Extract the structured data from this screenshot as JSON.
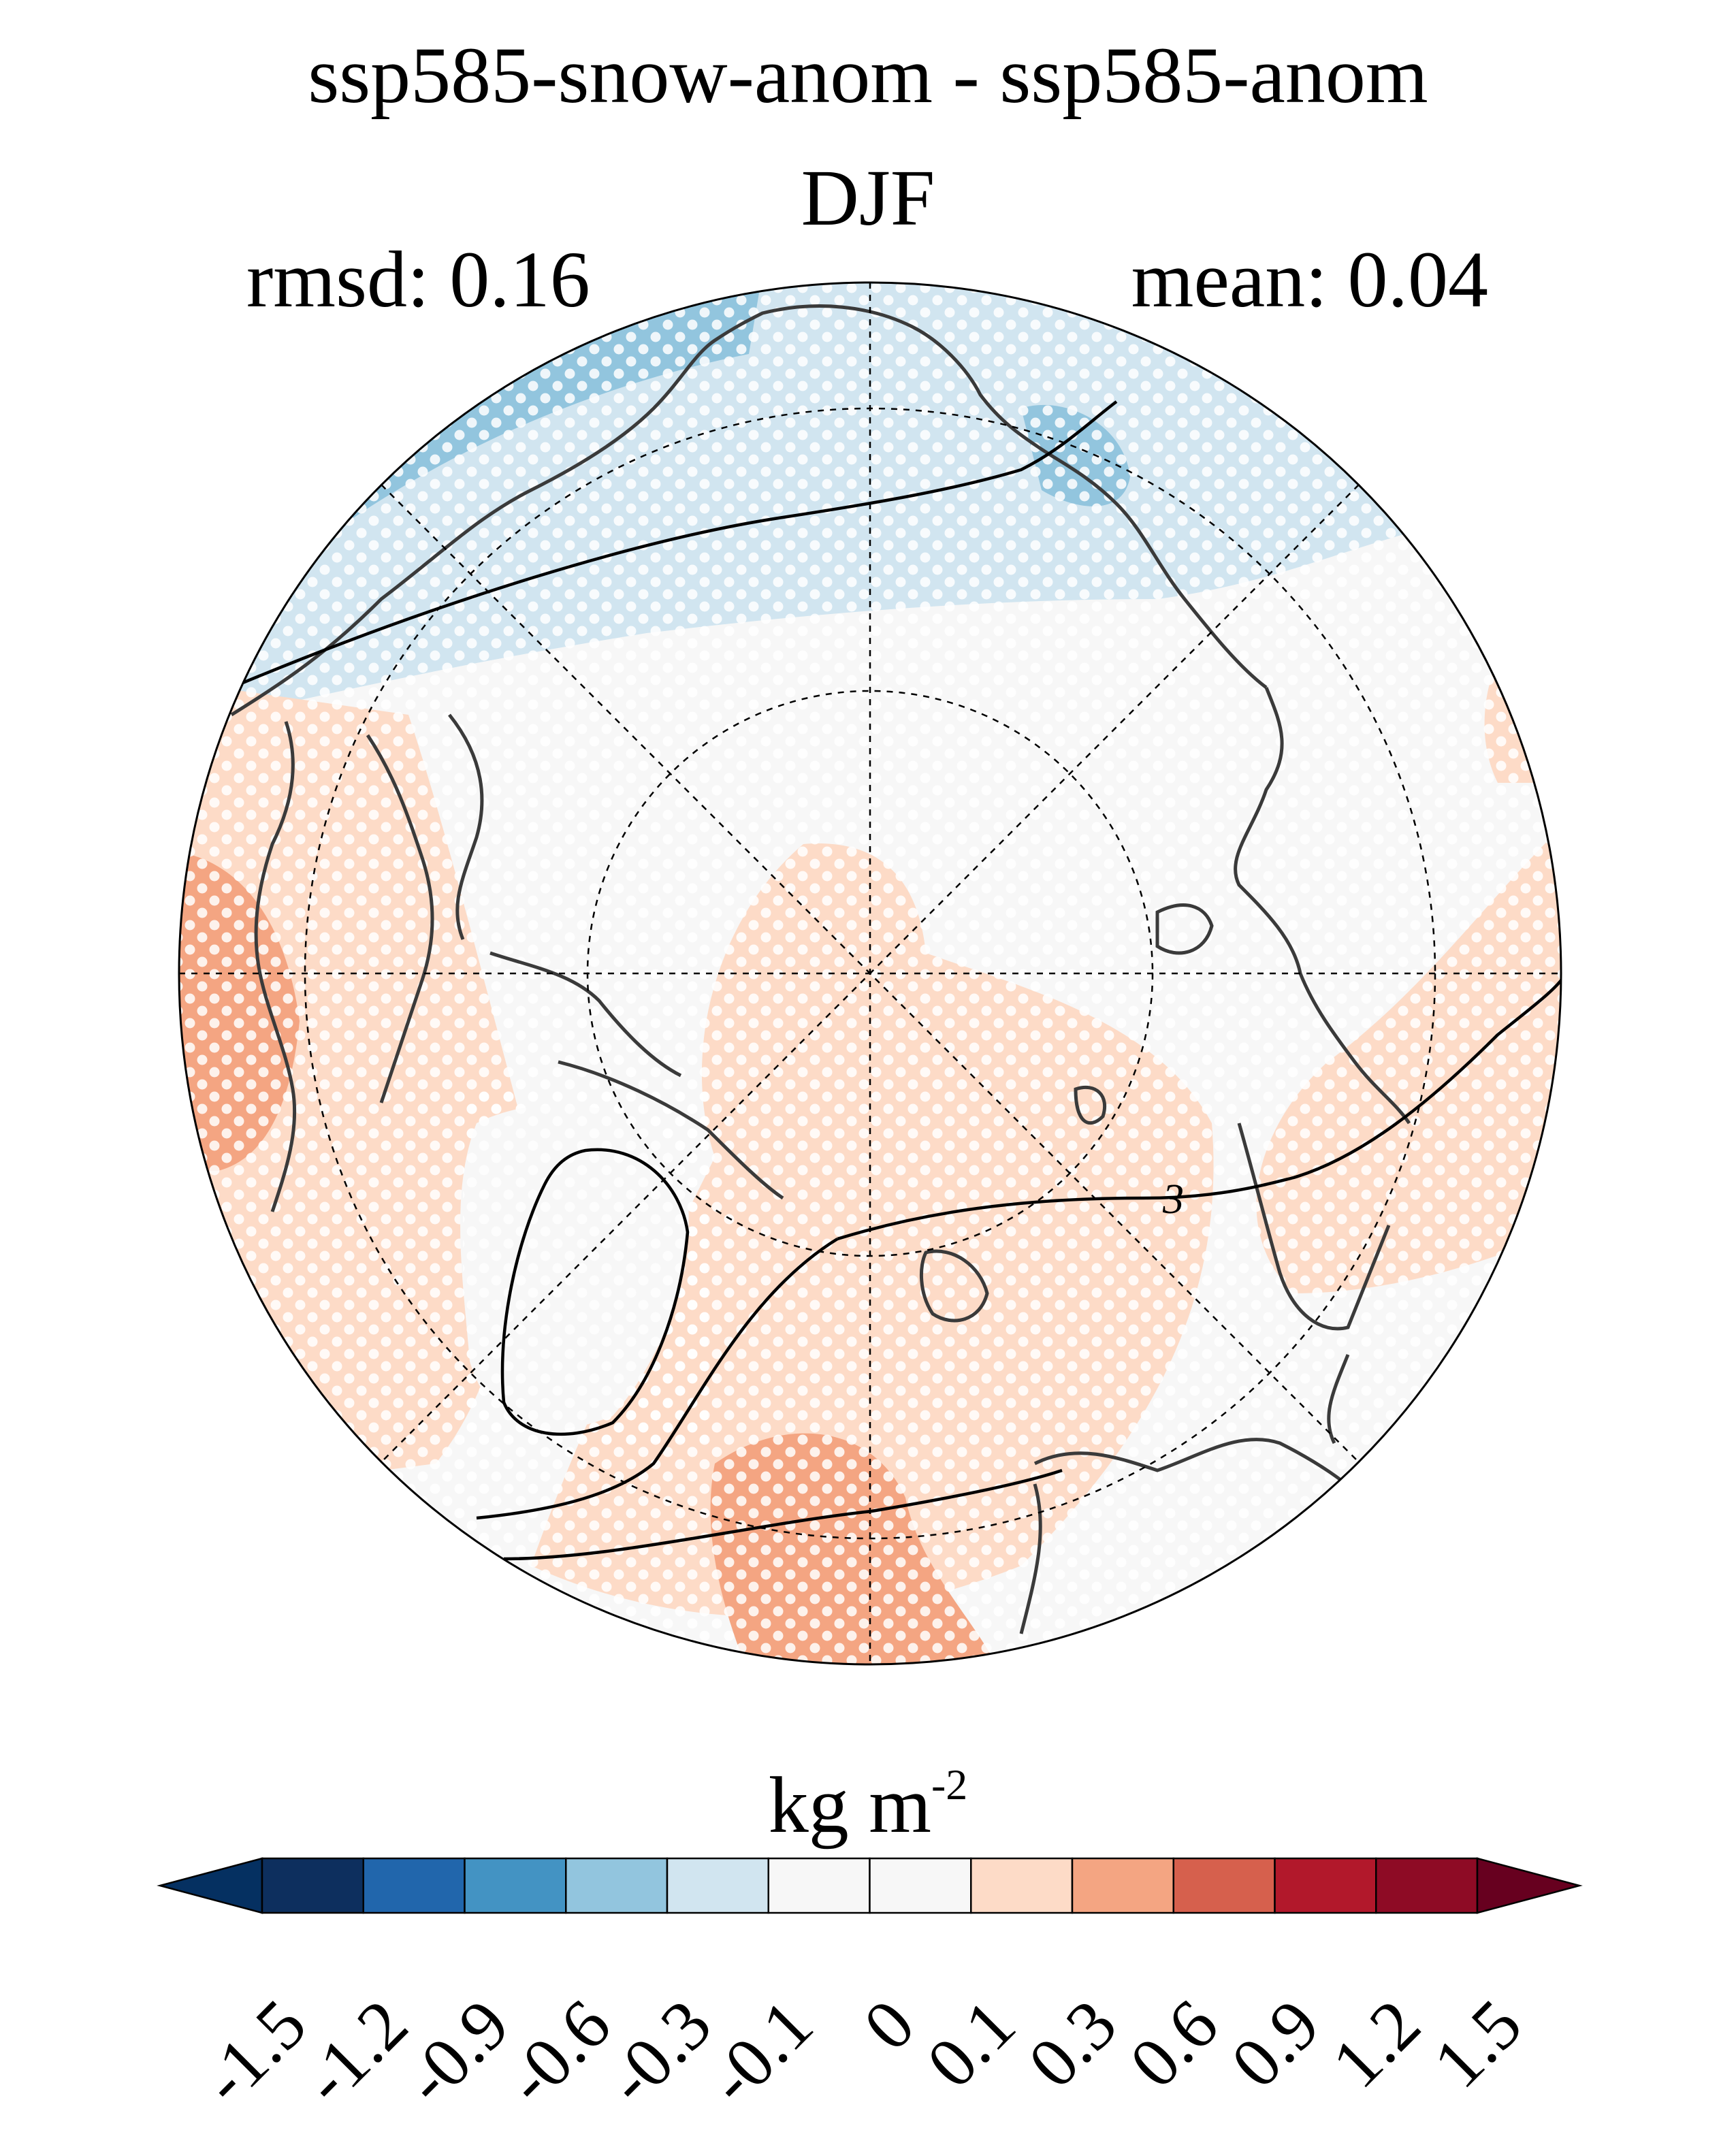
{
  "title_line1": "ssp585-snow-anom - ssp585-anom",
  "title_line2": "DJF",
  "stats": {
    "rmsd_label": "rmsd: 0.16",
    "mean_label": "mean: 0.04"
  },
  "map": {
    "projection": "north polar stereographic",
    "contour_label": "3",
    "stippling": "white dots mark significant regions",
    "colors": {
      "land_outline": "#3a3a3a",
      "contour_line": "#000000",
      "grid": "#000000"
    }
  },
  "colorbar": {
    "units_main": "kg m",
    "units_sup": "-2",
    "tick_labels": [
      "-1.5",
      "-1.2",
      "-0.9",
      "-0.6",
      "-0.3",
      "-0.1",
      "0",
      "0.1",
      "0.3",
      "0.6",
      "0.9",
      "1.2",
      "1.5"
    ],
    "colors": [
      "#053061",
      "#0d2f5e",
      "#2166ac",
      "#4393c3",
      "#92c5de",
      "#d1e5f0",
      "#f7f7f7",
      "#f7f7f7",
      "#fddbc7",
      "#f4a582",
      "#d6604d",
      "#b2182b",
      "#8e0b25",
      "#67001f"
    ]
  }
}
